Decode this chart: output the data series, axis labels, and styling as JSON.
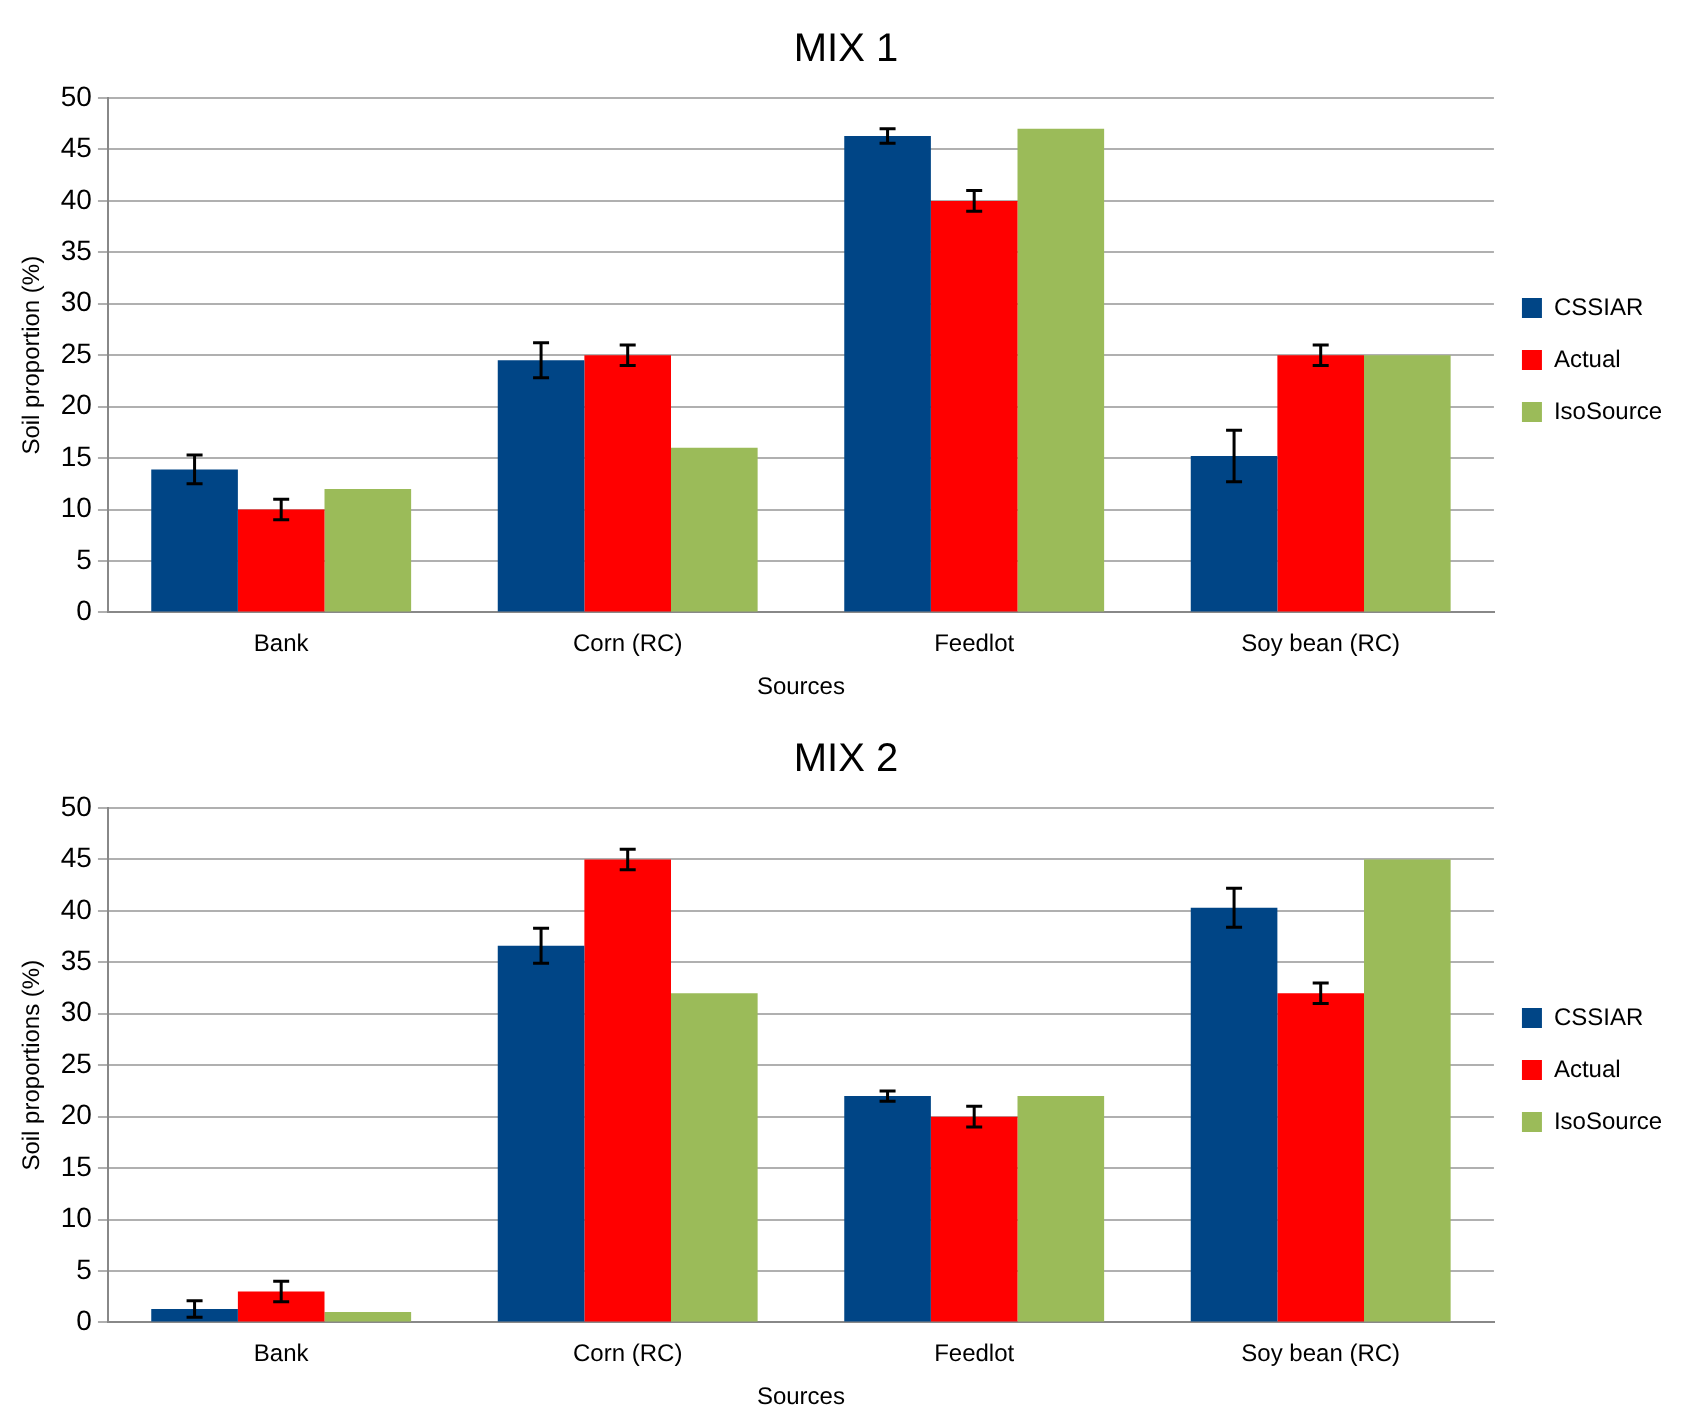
{
  "chart_data": [
    {
      "type": "bar",
      "title": "MIX 1",
      "xlabel": "Sources",
      "ylabel": "Soil proportion (%)",
      "categories": [
        "Bank",
        "Corn (RC)",
        "Feedlot",
        "Soy bean (RC)"
      ],
      "ylim": [
        0,
        50
      ],
      "yticks": [
        0,
        5,
        10,
        15,
        20,
        25,
        30,
        35,
        40,
        45,
        50
      ],
      "grid": "y",
      "legend": "right",
      "series": [
        {
          "name": "CSSIAR",
          "color": "#004586",
          "values": [
            13.9,
            24.5,
            46.3,
            15.2
          ],
          "errors": [
            1.4,
            1.7,
            0.7,
            2.5
          ]
        },
        {
          "name": "Actual",
          "color": "#ff0000",
          "values": [
            10,
            25,
            40,
            25
          ],
          "errors": [
            1,
            1,
            1,
            1
          ]
        },
        {
          "name": "IsoSource",
          "color": "#9bbb59",
          "values": [
            12,
            16,
            47,
            25
          ]
        }
      ]
    },
    {
      "type": "bar",
      "title": "MIX 2",
      "xlabel": "Sources",
      "ylabel": "Soil proportions (%)",
      "categories": [
        "Bank",
        "Corn (RC)",
        "Feedlot",
        "Soy bean (RC)"
      ],
      "ylim": [
        0,
        50
      ],
      "yticks": [
        0,
        5,
        10,
        15,
        20,
        25,
        30,
        35,
        40,
        45,
        50
      ],
      "grid": "y",
      "legend": "right",
      "series": [
        {
          "name": "CSSIAR",
          "color": "#004586",
          "values": [
            1.3,
            36.6,
            22,
            40.3
          ],
          "errors": [
            0.8,
            1.7,
            0.5,
            1.9
          ]
        },
        {
          "name": "Actual",
          "color": "#ff0000",
          "values": [
            3,
            45,
            20,
            32
          ],
          "errors": [
            1,
            1,
            1,
            1
          ]
        },
        {
          "name": "IsoSource",
          "color": "#9bbb59",
          "values": [
            1,
            32,
            22,
            45
          ]
        }
      ]
    }
  ]
}
